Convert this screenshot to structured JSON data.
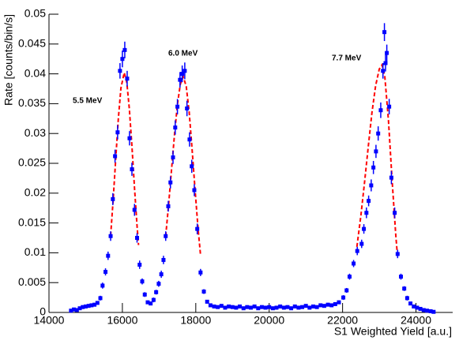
{
  "chart_data": {
    "type": "scatter",
    "xlabel": "S1 Weighted Yield [a.u.]",
    "ylabel": "Rate [counts/bin/s]",
    "annotations": [
      "5.5 MeV",
      "6.0 MeV",
      "7.7 MeV"
    ],
    "xlim": [
      14000,
      25000
    ],
    "xticks": [
      14000,
      16000,
      18000,
      20000,
      22000,
      24000
    ],
    "ylim": [
      0,
      0.05
    ],
    "yticks": [
      0,
      0.005,
      0.01,
      0.015,
      0.02,
      0.025,
      0.03,
      0.035,
      0.04,
      0.045,
      0.05
    ],
    "grid": false,
    "points": {
      "color": "#0000ff",
      "x": [
        14600,
        14680,
        14760,
        14840,
        14920,
        15000,
        15080,
        15160,
        15240,
        15320,
        15400,
        15460,
        15540,
        15610,
        15680,
        15740,
        15800,
        15870,
        15935,
        16000,
        16065,
        16130,
        16195,
        16260,
        16330,
        16400,
        16470,
        16540,
        16610,
        16690,
        16770,
        16850,
        16920,
        16990,
        17060,
        17120,
        17180,
        17250,
        17310,
        17380,
        17440,
        17500,
        17570,
        17630,
        17700,
        17760,
        17830,
        17890,
        17960,
        18040,
        18130,
        18220,
        18310,
        18400,
        18500,
        18600,
        18700,
        18800,
        18900,
        19000,
        19100,
        19200,
        19300,
        19400,
        19500,
        19600,
        19700,
        19800,
        19900,
        20000,
        20100,
        20200,
        20300,
        20400,
        20500,
        20600,
        20700,
        20800,
        20900,
        21000,
        21100,
        21200,
        21300,
        21400,
        21500,
        21600,
        21700,
        21800,
        21900,
        22020,
        22110,
        22190,
        22300,
        22400,
        22520,
        22580,
        22650,
        22710,
        22780,
        22840,
        22910,
        22970,
        23040,
        23100,
        23140,
        23170,
        23205,
        23270,
        23330,
        23420,
        23500,
        23590,
        23680,
        23760,
        23850,
        23940,
        24030,
        24120,
        24210,
        24300,
        24400,
        24480
      ],
      "values": [
        0.0003,
        0.0005,
        0.0004,
        0.0007,
        0.0009,
        0.001,
        0.0011,
        0.0012,
        0.0013,
        0.0016,
        0.0024,
        0.0045,
        0.0068,
        0.0095,
        0.0128,
        0.019,
        0.0262,
        0.0302,
        0.0405,
        0.0425,
        0.044,
        0.0392,
        0.0292,
        0.024,
        0.0172,
        0.0125,
        0.008,
        0.0052,
        0.003,
        0.0017,
        0.0015,
        0.0021,
        0.0034,
        0.0048,
        0.0064,
        0.0088,
        0.0128,
        0.0178,
        0.0218,
        0.026,
        0.031,
        0.0345,
        0.039,
        0.04,
        0.0405,
        0.0342,
        0.029,
        0.0245,
        0.0205,
        0.014,
        0.0067,
        0.0035,
        0.0018,
        0.0012,
        0.001,
        0.0009,
        0.0011,
        0.0008,
        0.001,
        0.0009,
        0.0008,
        0.001,
        0.0007,
        0.0009,
        0.0008,
        0.001,
        0.0007,
        0.0009,
        0.0008,
        0.0009,
        0.0007,
        0.0008,
        0.001,
        0.0008,
        0.0009,
        0.0007,
        0.001,
        0.0008,
        0.0009,
        0.0011,
        0.0008,
        0.001,
        0.0009,
        0.0012,
        0.0011,
        0.0013,
        0.0012,
        0.0014,
        0.0017,
        0.0025,
        0.0037,
        0.006,
        0.0082,
        0.0103,
        0.0115,
        0.014,
        0.0167,
        0.0187,
        0.0213,
        0.0243,
        0.027,
        0.03,
        0.0339,
        0.0405,
        0.047,
        0.0418,
        0.0435,
        0.0345,
        0.0226,
        0.0167,
        0.0098,
        0.006,
        0.004,
        0.0024,
        0.0015,
        0.001,
        0.0008,
        0.0006,
        0.0004,
        0.0003,
        0.0002,
        0.0001
      ],
      "errors": [
        0.0002,
        0.0002,
        0.0002,
        0.0002,
        0.0003,
        0.0003,
        0.0003,
        0.0003,
        0.0003,
        0.0003,
        0.0004,
        0.0005,
        0.0006,
        0.0007,
        0.0008,
        0.001,
        0.0011,
        0.0012,
        0.0013,
        0.0014,
        0.0014,
        0.0013,
        0.0012,
        0.0011,
        0.001,
        0.0008,
        0.0007,
        0.0005,
        0.0004,
        0.0003,
        0.0003,
        0.0004,
        0.0004,
        0.0005,
        0.0006,
        0.0007,
        0.0008,
        0.0009,
        0.001,
        0.0011,
        0.0012,
        0.0013,
        0.0013,
        0.0014,
        0.0014,
        0.0013,
        0.0012,
        0.0011,
        0.001,
        0.0009,
        0.0006,
        0.0004,
        0.0003,
        0.0003,
        0.0003,
        0.0003,
        0.0003,
        0.0003,
        0.0003,
        0.0003,
        0.0003,
        0.0003,
        0.0003,
        0.0003,
        0.0003,
        0.0003,
        0.0003,
        0.0003,
        0.0003,
        0.0003,
        0.0003,
        0.0003,
        0.0003,
        0.0003,
        0.0003,
        0.0003,
        0.0003,
        0.0003,
        0.0003,
        0.0003,
        0.0003,
        0.0003,
        0.0003,
        0.0003,
        0.0003,
        0.0003,
        0.0003,
        0.0003,
        0.0003,
        0.0004,
        0.0004,
        0.0005,
        0.0006,
        0.0007,
        0.0007,
        0.0008,
        0.0009,
        0.0009,
        0.001,
        0.0011,
        0.0011,
        0.0012,
        0.0013,
        0.0013,
        0.0015,
        0.0014,
        0.0014,
        0.0013,
        0.0011,
        0.0009,
        0.0007,
        0.0005,
        0.0004,
        0.0004,
        0.0003,
        0.0003,
        0.0003,
        0.0002,
        0.0002,
        0.0002,
        0.0002,
        0.0002
      ]
    },
    "fit": {
      "color": "#ff0000",
      "x": [
        15680,
        15750,
        15820,
        15890,
        15960,
        16050,
        16120,
        16190,
        16260,
        16330,
        16400,
        16440,
        null,
        17180,
        17260,
        17340,
        17420,
        17500,
        17580,
        17660,
        17740,
        17820,
        17900,
        17980,
        18060,
        18130,
        null,
        22390,
        22500,
        22600,
        22700,
        22800,
        22900,
        23000,
        23075,
        23150,
        23250,
        23350,
        23450,
        23490
      ],
      "values": [
        0.0129,
        0.019,
        0.0259,
        0.0325,
        0.0376,
        0.0402,
        0.0386,
        0.0341,
        0.0279,
        0.0209,
        0.0145,
        0.0113,
        null,
        0.0128,
        0.0181,
        0.024,
        0.0298,
        0.0349,
        0.0383,
        0.0395,
        0.0379,
        0.0336,
        0.0273,
        0.0206,
        0.0142,
        0.0096,
        null,
        0.011,
        0.0163,
        0.0219,
        0.0278,
        0.0335,
        0.038,
        0.0408,
        0.0415,
        0.0396,
        0.0322,
        0.0221,
        0.0129,
        0.0099
      ]
    }
  }
}
